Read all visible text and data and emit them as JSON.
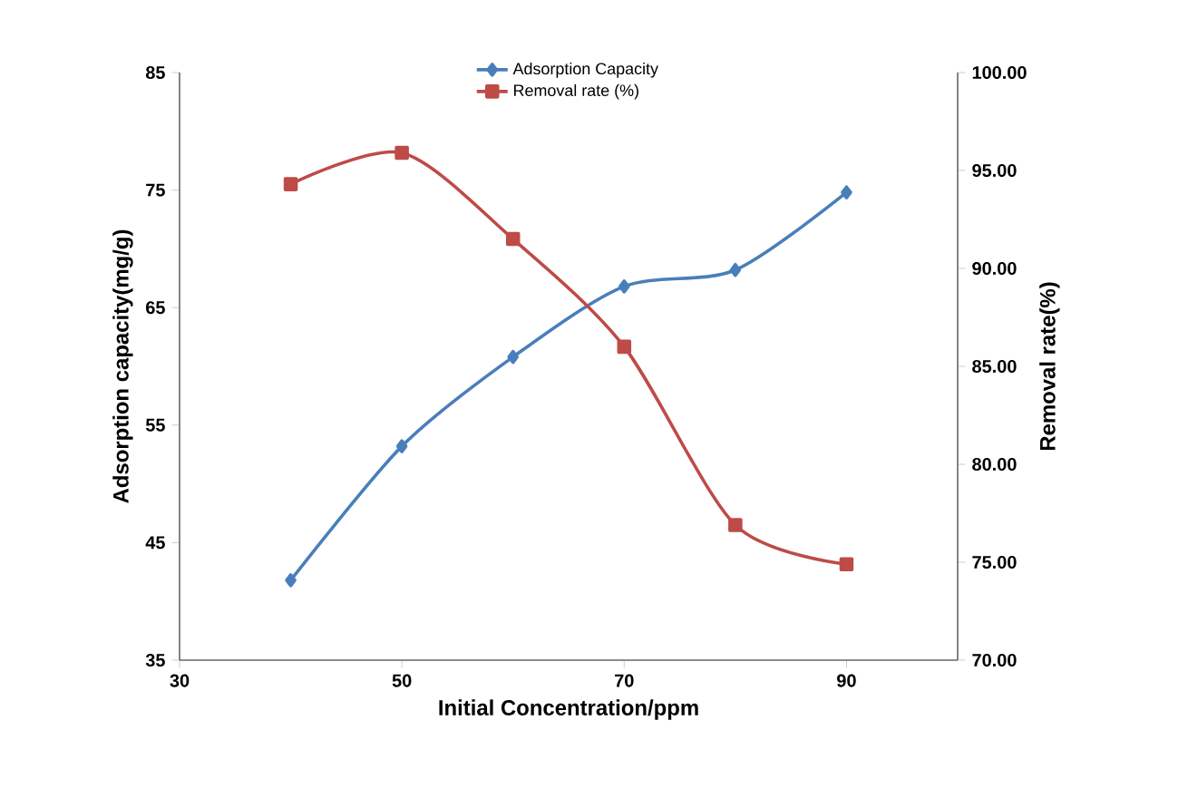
{
  "chart_data": {
    "type": "line",
    "xlabel": "Initial Concentration/ppm",
    "ylabel": "Adsorption capacity(mg/g)",
    "y2label": "Removal rate(%)",
    "x": [
      40,
      50,
      60,
      70,
      80,
      90
    ],
    "series": [
      {
        "name": "Adsorption Capacity",
        "color": "#4a7ebb",
        "marker": "diamond",
        "values": [
          41.8,
          53.2,
          60.8,
          66.8,
          68.2,
          74.8
        ]
      },
      {
        "name": "Removal rate (%)",
        "color": "#be4b48",
        "marker": "square",
        "axis": "y2",
        "values": [
          94.3,
          95.9,
          91.5,
          86.0,
          76.9,
          74.9
        ]
      }
    ],
    "xlim": [
      30,
      100
    ],
    "xticks": [
      30,
      50,
      70,
      90
    ],
    "ylim": [
      35,
      85
    ],
    "yticks": [
      35,
      45,
      55,
      65,
      75,
      85
    ],
    "y2lim": [
      70,
      100
    ],
    "y2ticks": [
      {
        "value": 70,
        "label": "70.00"
      },
      {
        "value": 75,
        "label": "75.00"
      },
      {
        "value": 80,
        "label": "80.00"
      },
      {
        "value": 85,
        "label": "85.00"
      },
      {
        "value": 90,
        "label": "90.00"
      },
      {
        "value": 95,
        "label": "95.00"
      },
      {
        "value": 100,
        "label": "100.00"
      }
    ],
    "legend": "top",
    "grid": false,
    "line_style": "solid"
  }
}
